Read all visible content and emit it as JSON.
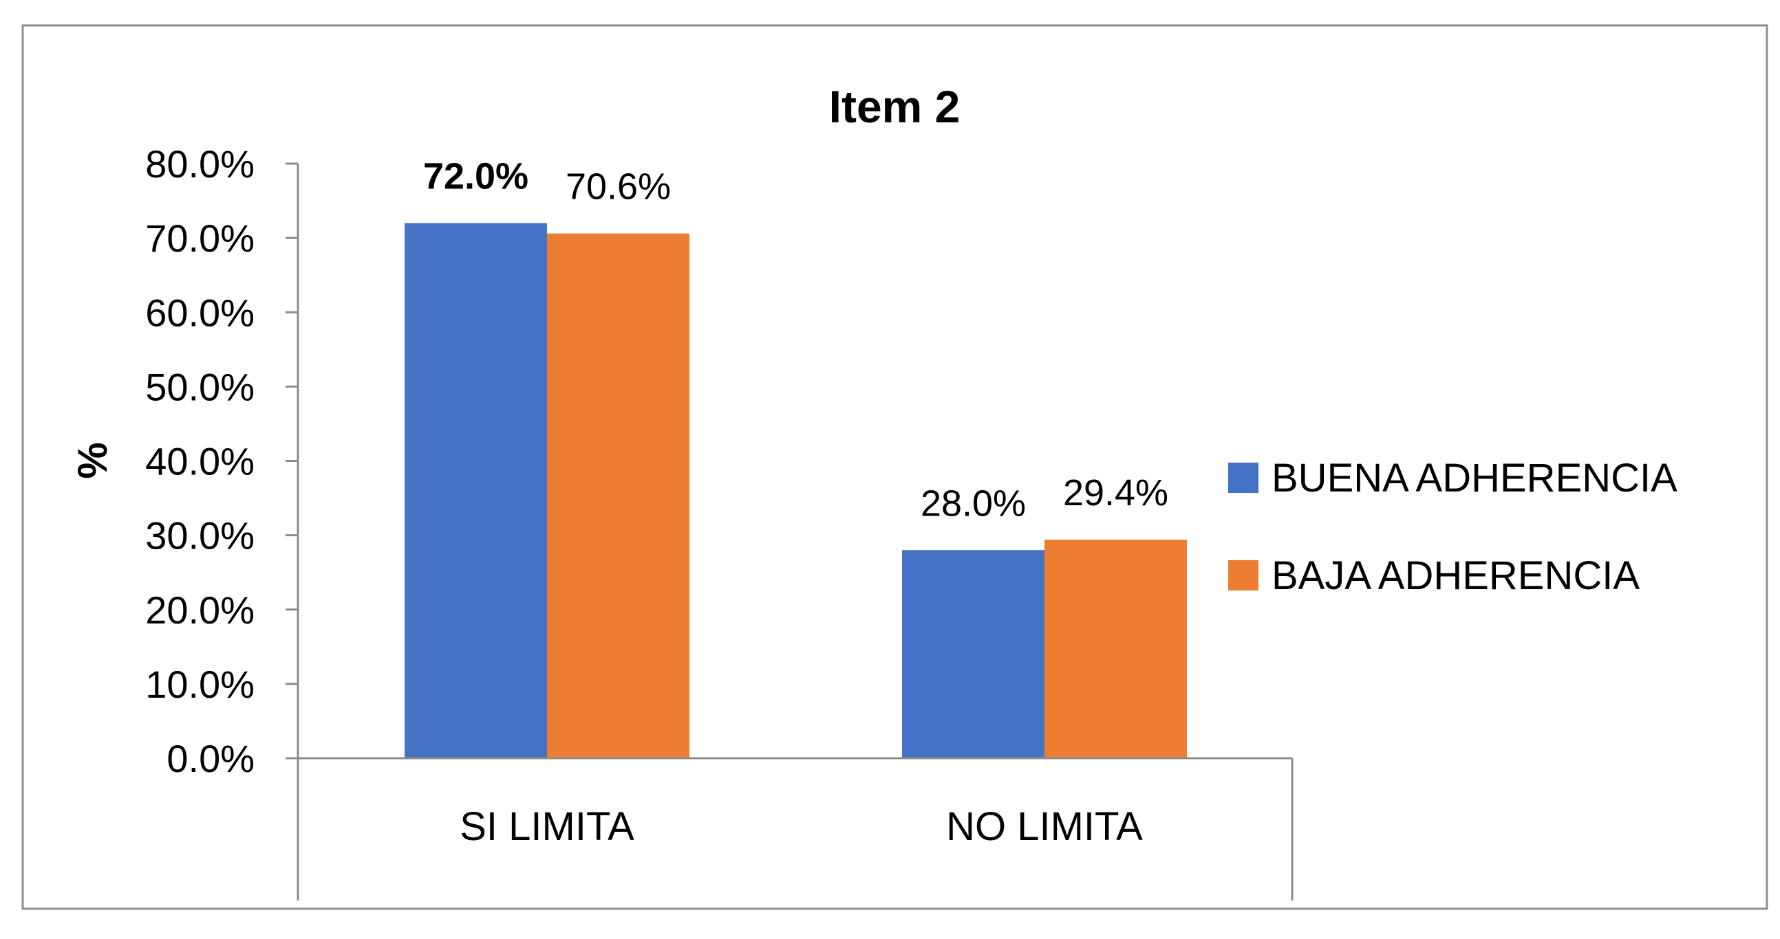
{
  "chart_data": {
    "type": "bar",
    "title": "Item 2",
    "ylabel": "%",
    "xlabel": "",
    "categories": [
      "SI LIMITA",
      "NO LIMITA"
    ],
    "series": [
      {
        "name": "BUENA ADHERENCIA",
        "color": "#4472C4",
        "values": [
          72.0,
          28.0
        ],
        "labels": [
          "72.0%",
          "28.0%"
        ]
      },
      {
        "name": "BAJA ADHERENCIA",
        "color": "#ED7D31",
        "values": [
          70.6,
          29.4
        ],
        "labels": [
          "70.6%",
          "29.4%"
        ]
      }
    ],
    "ylim": [
      0,
      80
    ],
    "yticks": [
      "0.0%",
      "10.0%",
      "20.0%",
      "30.0%",
      "40.0%",
      "50.0%",
      "60.0%",
      "70.0%",
      "80.0%"
    ],
    "grid": false,
    "legend_position": "right"
  }
}
